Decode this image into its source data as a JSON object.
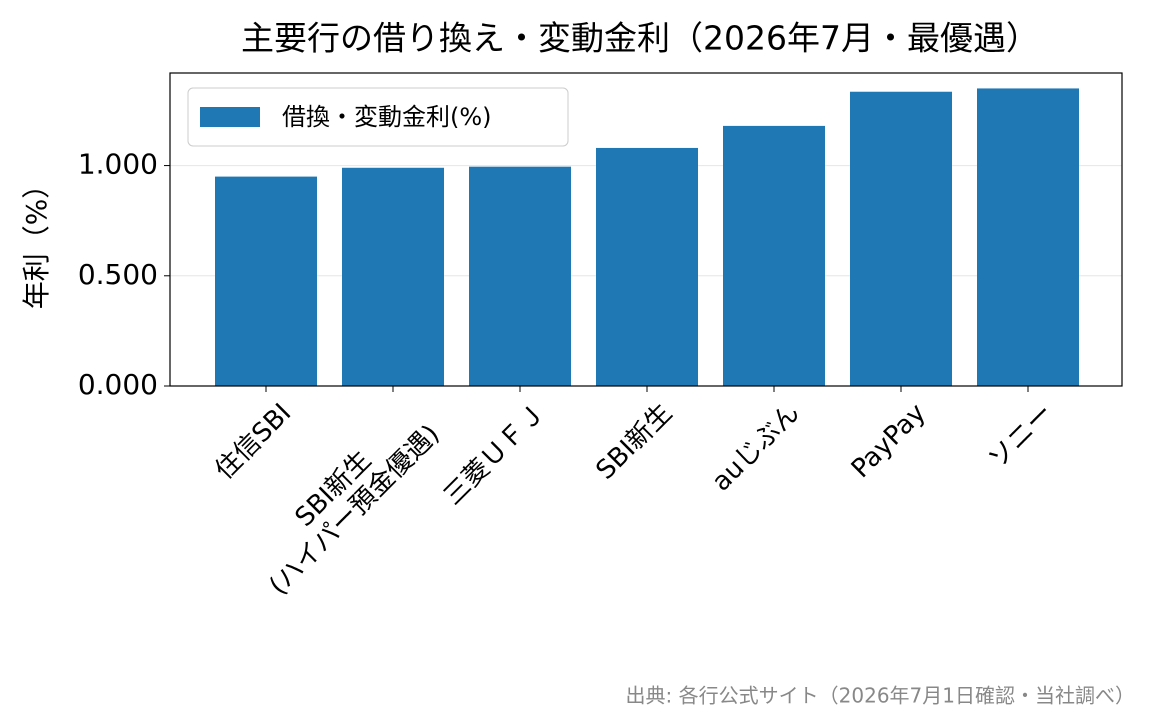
{
  "chart_data": {
    "type": "bar",
    "title": "主要行の借り換え・変動金利（2026年7月・最優遇）",
    "ylabel": "年利（%）",
    "source": "出典: 各行公式サイト（2026年7月1日確認・当社調べ）",
    "categories": [
      "住信SBI",
      "SBI新生\n(ハイパー預金優遇)",
      "三菱ＵＦＪ",
      "SBI新生",
      "auじぶん",
      "PayPay",
      "ソニー"
    ],
    "series": [
      {
        "name": "借換・変動金利(%)",
        "color": "#1f77b4",
        "values": [
          0.95,
          0.99,
          0.995,
          1.08,
          1.18,
          1.335,
          1.35
        ]
      }
    ],
    "ylim": [
      0,
      1.42
    ],
    "yticks": [
      {
        "value": 0,
        "label": "0.000"
      },
      {
        "value": 0.5,
        "label": "0.500"
      },
      {
        "value": 1,
        "label": "1.000"
      }
    ],
    "grid": true,
    "legend": "upper left"
  }
}
